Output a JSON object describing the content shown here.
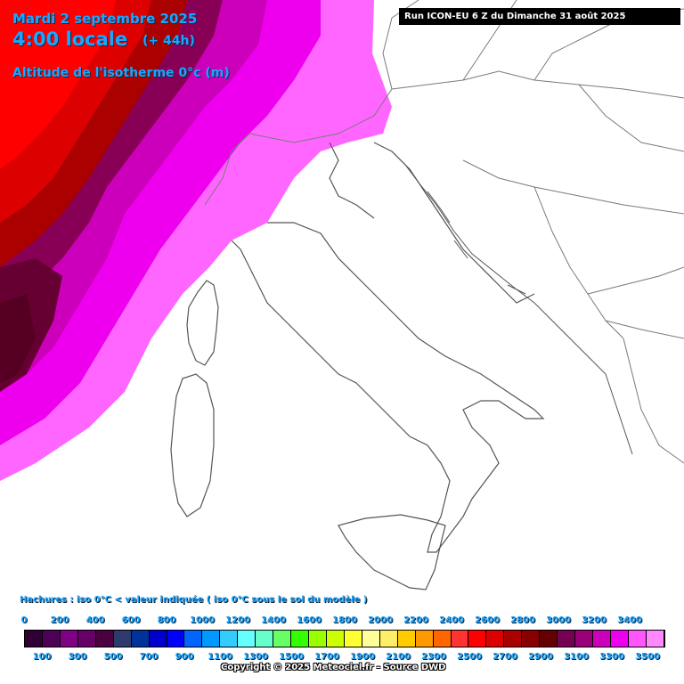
{
  "header": {
    "date": "Mardi 2 septembre 2025",
    "time": "4:00 locale",
    "lead": "(+ 44h)",
    "parameter": "Altitude de l'isotherme 0°c (m)"
  },
  "run_banner": "Run ICON-EU 6 Z du Dimanche 31 août 2025",
  "hatch_note": "Hachures : iso 0°C < valeur indiquée ( iso 0°C sous le sol du modèle )",
  "legend": {
    "top_ticks": [
      "0",
      "200",
      "400",
      "600",
      "800",
      "1000",
      "1200",
      "1400",
      "1600",
      "1800",
      "2000",
      "2200",
      "2400",
      "2600",
      "2800",
      "3000",
      "3200",
      "3400"
    ],
    "bottom_ticks": [
      "100",
      "300",
      "500",
      "700",
      "900",
      "1100",
      "1300",
      "1500",
      "1700",
      "1900",
      "2100",
      "2300",
      "2500",
      "2700",
      "2900",
      "3100",
      "3300",
      "3500"
    ],
    "colors": [
      "#2e0033",
      "#4d0055",
      "#800085",
      "#660066",
      "#4d0040",
      "#2e3a6e",
      "#003399",
      "#0000cc",
      "#0000ff",
      "#0066ff",
      "#0099ff",
      "#33ccff",
      "#66ffff",
      "#66ffcc",
      "#66ff66",
      "#33ff00",
      "#99ff00",
      "#ccff00",
      "#ffff33",
      "#ffff99",
      "#ffee66",
      "#ffcc00",
      "#ff9900",
      "#ff6600",
      "#ff3333",
      "#ff0000",
      "#dd0000",
      "#aa0000",
      "#880000",
      "#660000",
      "#770055",
      "#990077",
      "#cc00bb",
      "#ee00ee",
      "#ff55ff",
      "#ff88ff"
    ]
  },
  "copyright": "Copyright © 2025 Meteociel.fr - Source DWD",
  "icons": {
    "map": "europe-italy-basemap"
  }
}
